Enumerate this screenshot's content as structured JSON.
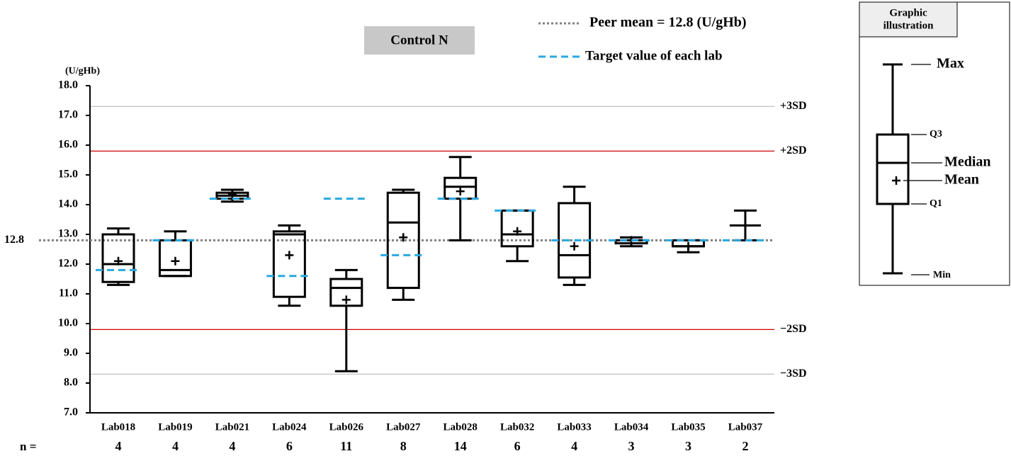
{
  "chart_data": {
    "type": "box",
    "title": "Control N",
    "y_unit": "(U/gHb)",
    "categories": [
      "Lab018",
      "Lab019",
      "Lab021",
      "Lab024",
      "Lab026",
      "Lab027",
      "Lab028",
      "Lab032",
      "Lab033",
      "Lab034",
      "Lab035",
      "Lab037"
    ],
    "n_label": "n =",
    "n": [
      4,
      4,
      4,
      6,
      11,
      8,
      14,
      6,
      4,
      3,
      3,
      2
    ],
    "min": [
      11.3,
      11.6,
      14.1,
      10.6,
      8.4,
      10.8,
      12.8,
      12.1,
      11.3,
      12.6,
      12.4,
      12.8
    ],
    "q1": [
      11.4,
      11.6,
      14.2,
      10.9,
      10.6,
      11.2,
      14.2,
      12.6,
      11.55,
      12.7,
      12.6,
      null
    ],
    "median": [
      12.0,
      11.8,
      14.3,
      13.0,
      11.2,
      13.4,
      14.6,
      13.0,
      12.3,
      12.8,
      12.6,
      13.3
    ],
    "q3": [
      13.0,
      12.8,
      14.4,
      13.1,
      11.5,
      14.4,
      14.9,
      13.8,
      14.05,
      12.8,
      12.8,
      null
    ],
    "max": [
      13.2,
      13.1,
      14.5,
      13.3,
      11.8,
      14.5,
      15.6,
      13.8,
      14.6,
      12.9,
      12.8,
      13.8
    ],
    "mean": [
      12.1,
      12.1,
      14.35,
      12.3,
      10.8,
      12.9,
      14.45,
      13.1,
      12.6,
      12.8,
      12.6,
      13.3
    ],
    "target": [
      11.8,
      12.8,
      14.2,
      11.6,
      14.2,
      12.3,
      14.2,
      13.8,
      12.8,
      12.8,
      12.8,
      12.8
    ],
    "box_color": "#000000",
    "target_color": "#29a9e0",
    "peer_mean": 12.8,
    "peer_mean_color": "#808080",
    "reference_lines": [
      {
        "value": 17.3,
        "label": "+3SD",
        "color": "#c0c0c0"
      },
      {
        "value": 15.8,
        "label": "+2SD",
        "color": "#cc0000"
      },
      {
        "value": 9.8,
        "label": "−2SD",
        "color": "#cc0000"
      },
      {
        "value": 8.3,
        "label": "−3SD",
        "color": "#c0c0c0"
      }
    ],
    "legend": [
      "Peer mean = 12.8 (U/gHb)",
      "Target value of each lab"
    ],
    "ylim": [
      7,
      18
    ],
    "yticks": [
      {
        "value": 7,
        "label": "7.0"
      },
      {
        "value": 8,
        "label": "8.0"
      },
      {
        "value": 9,
        "label": "9.0"
      },
      {
        "value": 10,
        "label": "10.0"
      },
      {
        "value": 11,
        "label": "11.0"
      },
      {
        "value": 12,
        "label": "12.0"
      },
      {
        "value": 13,
        "label": "13.0"
      },
      {
        "value": 14,
        "label": "14.0"
      },
      {
        "value": 15,
        "label": "15.0"
      },
      {
        "value": 16,
        "label": "16.0"
      },
      {
        "value": 17,
        "label": "17.0"
      },
      {
        "value": 18,
        "label": "18.0"
      }
    ]
  },
  "illustration": {
    "title_line1": "Graphic",
    "title_line2": "illustration",
    "max": "Max",
    "q3": "Q3",
    "median": "Median",
    "mean": "Mean",
    "q1": "Q1",
    "min": "Min"
  }
}
